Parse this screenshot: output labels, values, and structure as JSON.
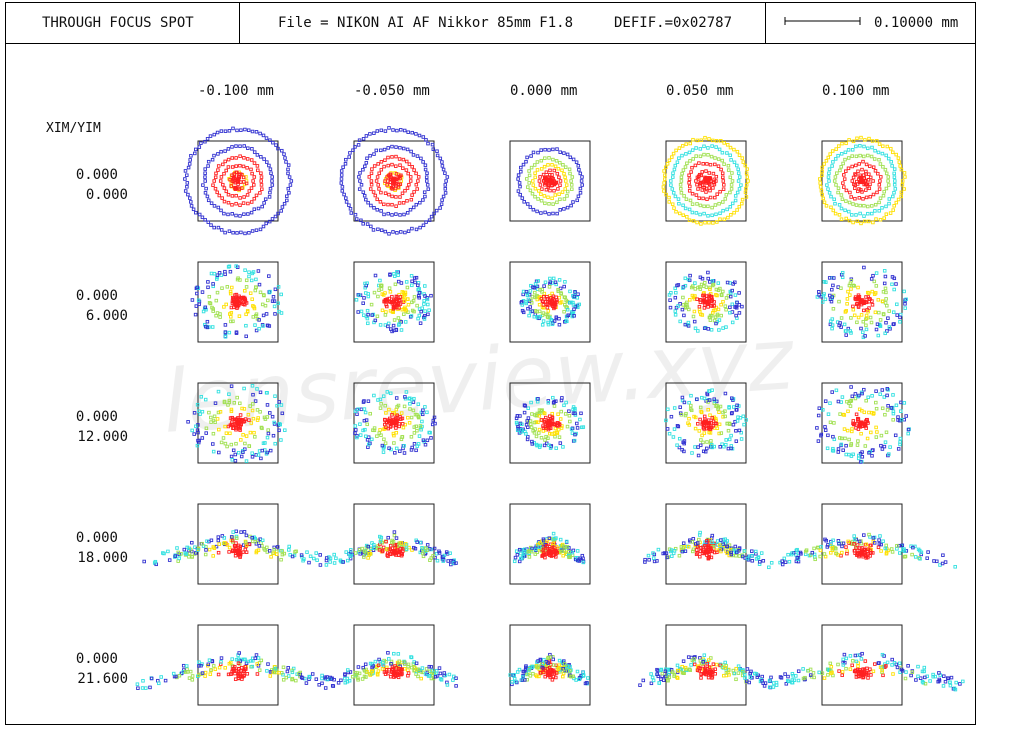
{
  "header": {
    "title": "THROUGH FOCUS SPOT",
    "file_label": "File = NIKON AI AF Nikkor 85mm F1.8",
    "defocus_label": "DEFIF.=0x02787",
    "scale_value": "0.10000 mm"
  },
  "watermark": "lensreview.xyz",
  "chart_data": {
    "type": "scatter",
    "title": "THROUGH FOCUS SPOT",
    "row_header": "XIM/YIM",
    "focus_offsets": [
      "-0.100  mm",
      "-0.050  mm",
      "0.000  mm",
      "0.050  mm",
      "0.100  mm"
    ],
    "fields": [
      {
        "xim": "0.000",
        "yim": "0.000"
      },
      {
        "xim": "0.000",
        "yim": "6.000"
      },
      {
        "xim": "0.000",
        "yim": "12.000"
      },
      {
        "xim": "0.000",
        "yim": "18.000"
      },
      {
        "xim": "0.000",
        "yim": "21.600"
      }
    ],
    "scale_bar_mm": 0.1,
    "box_size_mm": 0.1,
    "wavelength_colors": [
      "#3030d0",
      "#ff2020",
      "#ffe000",
      "#a0e050",
      "#30e0e0"
    ]
  }
}
